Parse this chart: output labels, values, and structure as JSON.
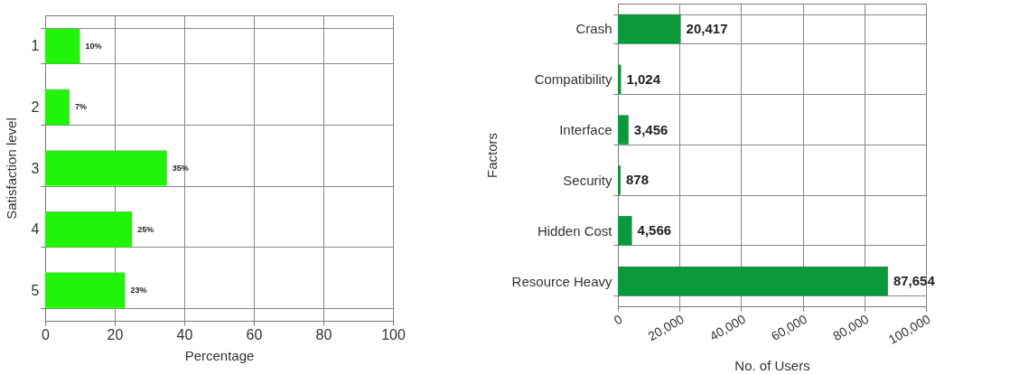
{
  "chart_data": [
    {
      "type": "bar",
      "orientation": "horizontal",
      "xlabel": "Percentage",
      "ylabel": "Satisfaction level",
      "categories": [
        "1",
        "2",
        "3",
        "4",
        "5"
      ],
      "values": [
        10,
        7,
        35,
        25,
        23
      ],
      "value_labels": [
        "10%",
        "7%",
        "35%",
        "25%",
        "23%"
      ],
      "color": "#22f30a",
      "xlim": [
        0,
        100
      ],
      "xticks": [
        0,
        20,
        40,
        60,
        80,
        100
      ],
      "grid": true
    },
    {
      "type": "bar",
      "orientation": "horizontal",
      "xlabel": "No. of Users",
      "ylabel": "Factors",
      "categories": [
        "Crash",
        "Compatibility",
        "Interface",
        "Security",
        "Hidden Cost",
        "Resource Heavy"
      ],
      "values": [
        20417,
        1024,
        3456,
        878,
        4566,
        87654
      ],
      "value_labels": [
        "20,417",
        "1,024",
        "3,456",
        "878",
        "4,566",
        "87,654"
      ],
      "color": "#0a9a3c",
      "xlim": [
        0,
        100000
      ],
      "xticks": [
        0,
        {
          "value": 20000,
          "label": "20,000"
        },
        {
          "value": 40000,
          "label": "40,000"
        },
        {
          "value": 60000,
          "label": "60,000"
        },
        {
          "value": 80000,
          "label": "80,000"
        },
        {
          "value": 100000,
          "label": "100,000"
        }
      ],
      "grid": true
    }
  ]
}
